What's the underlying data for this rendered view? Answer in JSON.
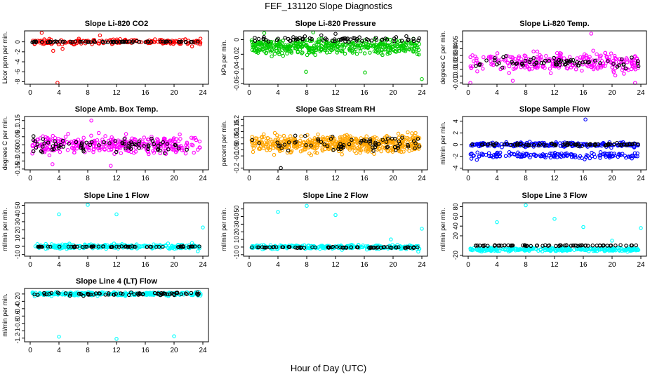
{
  "title": "FEF_131120  Slope Diagnostics",
  "xlabel": "Hour of Day (UTC)",
  "chart_data": [
    {
      "type": "scatter",
      "title": "Slope Li-820 CO2",
      "ylabel": "Licor ppm per min.",
      "xlim": [
        0,
        24
      ],
      "xticks": [
        0,
        4,
        8,
        12,
        16,
        20,
        24
      ],
      "ylim": [
        -8.5,
        2.2
      ],
      "yticks": [
        -8,
        -6,
        -4,
        -2,
        0
      ],
      "color": "#ff0000",
      "series": [
        {
          "color": "#ff0000",
          "pattern": {
            "base": 0,
            "spread": 0.5,
            "n": 170
          },
          "outliers": [
            [
              3.8,
              -8.2
            ],
            [
              1.6,
              1.8
            ],
            [
              4.5,
              -1.4
            ],
            [
              9.7,
              1.3
            ],
            [
              3.2,
              -1.8
            ],
            [
              22.5,
              -0.9
            ]
          ]
        },
        {
          "color": "#000000",
          "pattern": {
            "base": 0,
            "spread": 0.12,
            "n": 75
          },
          "outliers": []
        }
      ]
    },
    {
      "type": "scatter",
      "title": "Slope Li-820 Pressure",
      "ylabel": "kPa per min.",
      "xlim": [
        0,
        24
      ],
      "xticks": [
        0,
        4,
        8,
        12,
        16,
        20,
        24
      ],
      "ylim": [
        -0.061,
        0.012
      ],
      "yticks": [
        -0.06,
        -0.04,
        -0.02,
        0.0
      ],
      "color": "#00cc00",
      "series": [
        {
          "color": "#00cc00",
          "pattern": {
            "base": -0.01,
            "spread": 0.009,
            "n": 420
          },
          "outliers": [
            [
              7.9,
              -0.044
            ],
            [
              16.1,
              -0.045
            ],
            [
              24,
              -0.054
            ],
            [
              2.1,
              0.009
            ],
            [
              8.9,
              0.01
            ]
          ]
        },
        {
          "color": "#000000",
          "pattern": {
            "base": 0.001,
            "spread": 0.004,
            "n": 70
          },
          "outliers": [
            [
              12.0,
              0.008
            ]
          ]
        }
      ]
    },
    {
      "type": "scatter",
      "title": "Slope Li-820 Temp.",
      "ylabel": "degrees C per min.",
      "xlim": [
        0,
        24
      ],
      "xticks": [
        0,
        4,
        8,
        12,
        16,
        20,
        24
      ],
      "ylim": [
        -0.012,
        0.066
      ],
      "yticks": [
        -0.01,
        0.0,
        0.01,
        0.02,
        0.03,
        0.04,
        0.05
      ],
      "color": "#ff00ff",
      "series": [
        {
          "color": "#ff00ff",
          "pattern": {
            "base": 0.02,
            "spread": 0.013,
            "n": 260
          },
          "outliers": [
            [
              17.1,
              0.062
            ],
            [
              0.3,
              -0.01
            ],
            [
              6.2,
              -0.007
            ],
            [
              23.2,
              -0.01
            ]
          ]
        },
        {
          "color": "#000000",
          "pattern": {
            "base": 0.02,
            "spread": 0.007,
            "n": 70
          },
          "outliers": []
        }
      ]
    },
    {
      "type": "scatter",
      "title": "Slope Amb. Box Temp.",
      "ylabel": "degrees C per min.",
      "xlim": [
        0,
        24
      ],
      "xticks": [
        0,
        4,
        8,
        12,
        16,
        20,
        24
      ],
      "ylim": [
        -0.155,
        0.175
      ],
      "yticks": [
        -0.15,
        -0.1,
        -0.05,
        0.0,
        0.05,
        0.1,
        0.15
      ],
      "color": "#ff00ff",
      "series": [
        {
          "color": "#ff00ff",
          "pattern": {
            "base": 0.0,
            "spread": 0.05,
            "n": 330
          },
          "outliers": [
            [
              11.2,
              -0.13
            ],
            [
              8.5,
              0.15
            ],
            [
              3.1,
              -0.12
            ]
          ]
        },
        {
          "color": "#000000",
          "pattern": {
            "base": 0.0,
            "spread": 0.04,
            "n": 75
          },
          "outliers": []
        }
      ]
    },
    {
      "type": "scatter",
      "title": "Slope Gas Stream RH",
      "ylabel": "percent per min.",
      "xlim": [
        0,
        24
      ],
      "xticks": [
        0,
        4,
        8,
        12,
        16,
        20,
        24
      ],
      "ylim": [
        -0.215,
        0.225
      ],
      "yticks": [
        -0.2,
        -0.1,
        -0.05,
        0.0,
        0.05,
        0.1,
        0.15,
        0.2
      ],
      "color": "#ffa500",
      "series": [
        {
          "color": "#ffa500",
          "pattern": {
            "base": 0.0,
            "spread": 0.07,
            "n": 520
          },
          "outliers": []
        },
        {
          "color": "#000000",
          "pattern": {
            "base": 0.0,
            "spread": 0.05,
            "n": 70
          },
          "outliers": [
            [
              4.4,
              -0.2
            ]
          ]
        }
      ]
    },
    {
      "type": "scatter",
      "title": "Slope Sample Flow",
      "ylabel": "ml/min per min.",
      "xlim": [
        0,
        24
      ],
      "xticks": [
        0,
        4,
        8,
        12,
        16,
        20,
        24
      ],
      "ylim": [
        -4.3,
        4.8
      ],
      "yticks": [
        -4,
        -2,
        0,
        2,
        4
      ],
      "color": "#0000ff",
      "series": [
        {
          "color": "#0000ff",
          "pattern": {
            "base": 0.0,
            "spread": 0.35,
            "n": 200
          },
          "outliers": [
            [
              16.3,
              4.3
            ]
          ]
        },
        {
          "color": "#0000ff",
          "pattern": {
            "base": -1.8,
            "spread": 0.45,
            "n": 160
          },
          "outliers": [
            [
              1.2,
              -2.6
            ],
            [
              16.2,
              -2.5
            ]
          ]
        },
        {
          "color": "#000000",
          "pattern": {
            "base": 0.0,
            "spread": 0.2,
            "n": 75
          },
          "outliers": []
        }
      ]
    },
    {
      "type": "scatter",
      "title": "Slope Line 1 Flow",
      "ylabel": "ml/min per min.",
      "xlim": [
        0,
        24
      ],
      "xticks": [
        0,
        4,
        8,
        12,
        16,
        20,
        24
      ],
      "ylim": [
        -12,
        53
      ],
      "yticks": [
        -10,
        0,
        10,
        20,
        30,
        40,
        50
      ],
      "color": "#00ffff",
      "series": [
        {
          "color": "#00ffff",
          "pattern": {
            "base": 0.0,
            "spread": 2.5,
            "n": 260
          },
          "outliers": [
            [
              4.0,
              39
            ],
            [
              8.0,
              50.5
            ],
            [
              12.0,
              39
            ],
            [
              24.0,
              23
            ],
            [
              22.5,
              4
            ],
            [
              23.3,
              -6
            ]
          ]
        },
        {
          "color": "#000000",
          "pattern": {
            "base": -0.5,
            "spread": 0.5,
            "n": 70
          },
          "outliers": []
        }
      ]
    },
    {
      "type": "scatter",
      "title": "Slope Line 2 Flow",
      "ylabel": "ml/min per min.",
      "xlim": [
        0,
        24
      ],
      "xticks": [
        0,
        4,
        8,
        12,
        16,
        20,
        24
      ],
      "ylim": [
        -12,
        58
      ],
      "yticks": [
        -10,
        0,
        10,
        20,
        30,
        40,
        50
      ],
      "color": "#00ffff",
      "series": [
        {
          "color": "#00ffff",
          "pattern": {
            "base": 0.0,
            "spread": 2.5,
            "n": 260
          },
          "outliers": [
            [
              4.0,
              46
            ],
            [
              8.0,
              54
            ],
            [
              12.0,
              42
            ],
            [
              24.0,
              24
            ],
            [
              19.7,
              10
            ],
            [
              23.5,
              -6
            ]
          ]
        },
        {
          "color": "#000000",
          "pattern": {
            "base": -0.5,
            "spread": 0.6,
            "n": 70
          },
          "outliers": []
        }
      ]
    },
    {
      "type": "scatter",
      "title": "Slope Line 3 Flow",
      "ylabel": "ml/min per min.",
      "xlim": [
        0,
        24
      ],
      "xticks": [
        0,
        4,
        8,
        12,
        16,
        20,
        24
      ],
      "ylim": [
        -22,
        88
      ],
      "yticks": [
        -20,
        20,
        40,
        60,
        80
      ],
      "color": "#00ffff",
      "series": [
        {
          "color": "#00ffff",
          "pattern": {
            "base": -8,
            "spread": 3.5,
            "n": 300
          },
          "outliers": [
            [
              4.0,
              48
            ],
            [
              8.0,
              83
            ],
            [
              12.0,
              55
            ],
            [
              16.0,
              38
            ],
            [
              20.0,
              10
            ],
            [
              24.0,
              36
            ]
          ]
        },
        {
          "color": "#000000",
          "pattern": {
            "base": 0,
            "spread": 0.8,
            "n": 70
          },
          "outliers": []
        }
      ]
    },
    {
      "type": "scatter",
      "title": "Slope Line 4 (LT) Flow",
      "ylabel": "ml/min per min.",
      "xlim": [
        0,
        24
      ],
      "xticks": [
        0,
        4,
        8,
        12,
        16,
        20,
        24
      ],
      "ylim": [
        -1.3,
        0.15
      ],
      "yticks": [
        -1.2,
        -1.0,
        -0.8,
        -0.6,
        -0.4,
        -0.2,
        0.0
      ],
      "color": "#00ffff",
      "series": [
        {
          "color": "#00ffff",
          "pattern": {
            "base": 0.0,
            "spread": 0.04,
            "n": 280
          },
          "outliers": [
            [
              4.0,
              -1.16
            ],
            [
              12.0,
              -1.22
            ],
            [
              20.0,
              -1.15
            ]
          ]
        },
        {
          "color": "#000000",
          "pattern": {
            "base": 0.0,
            "spread": 0.04,
            "n": 70
          },
          "outliers": []
        }
      ]
    }
  ]
}
